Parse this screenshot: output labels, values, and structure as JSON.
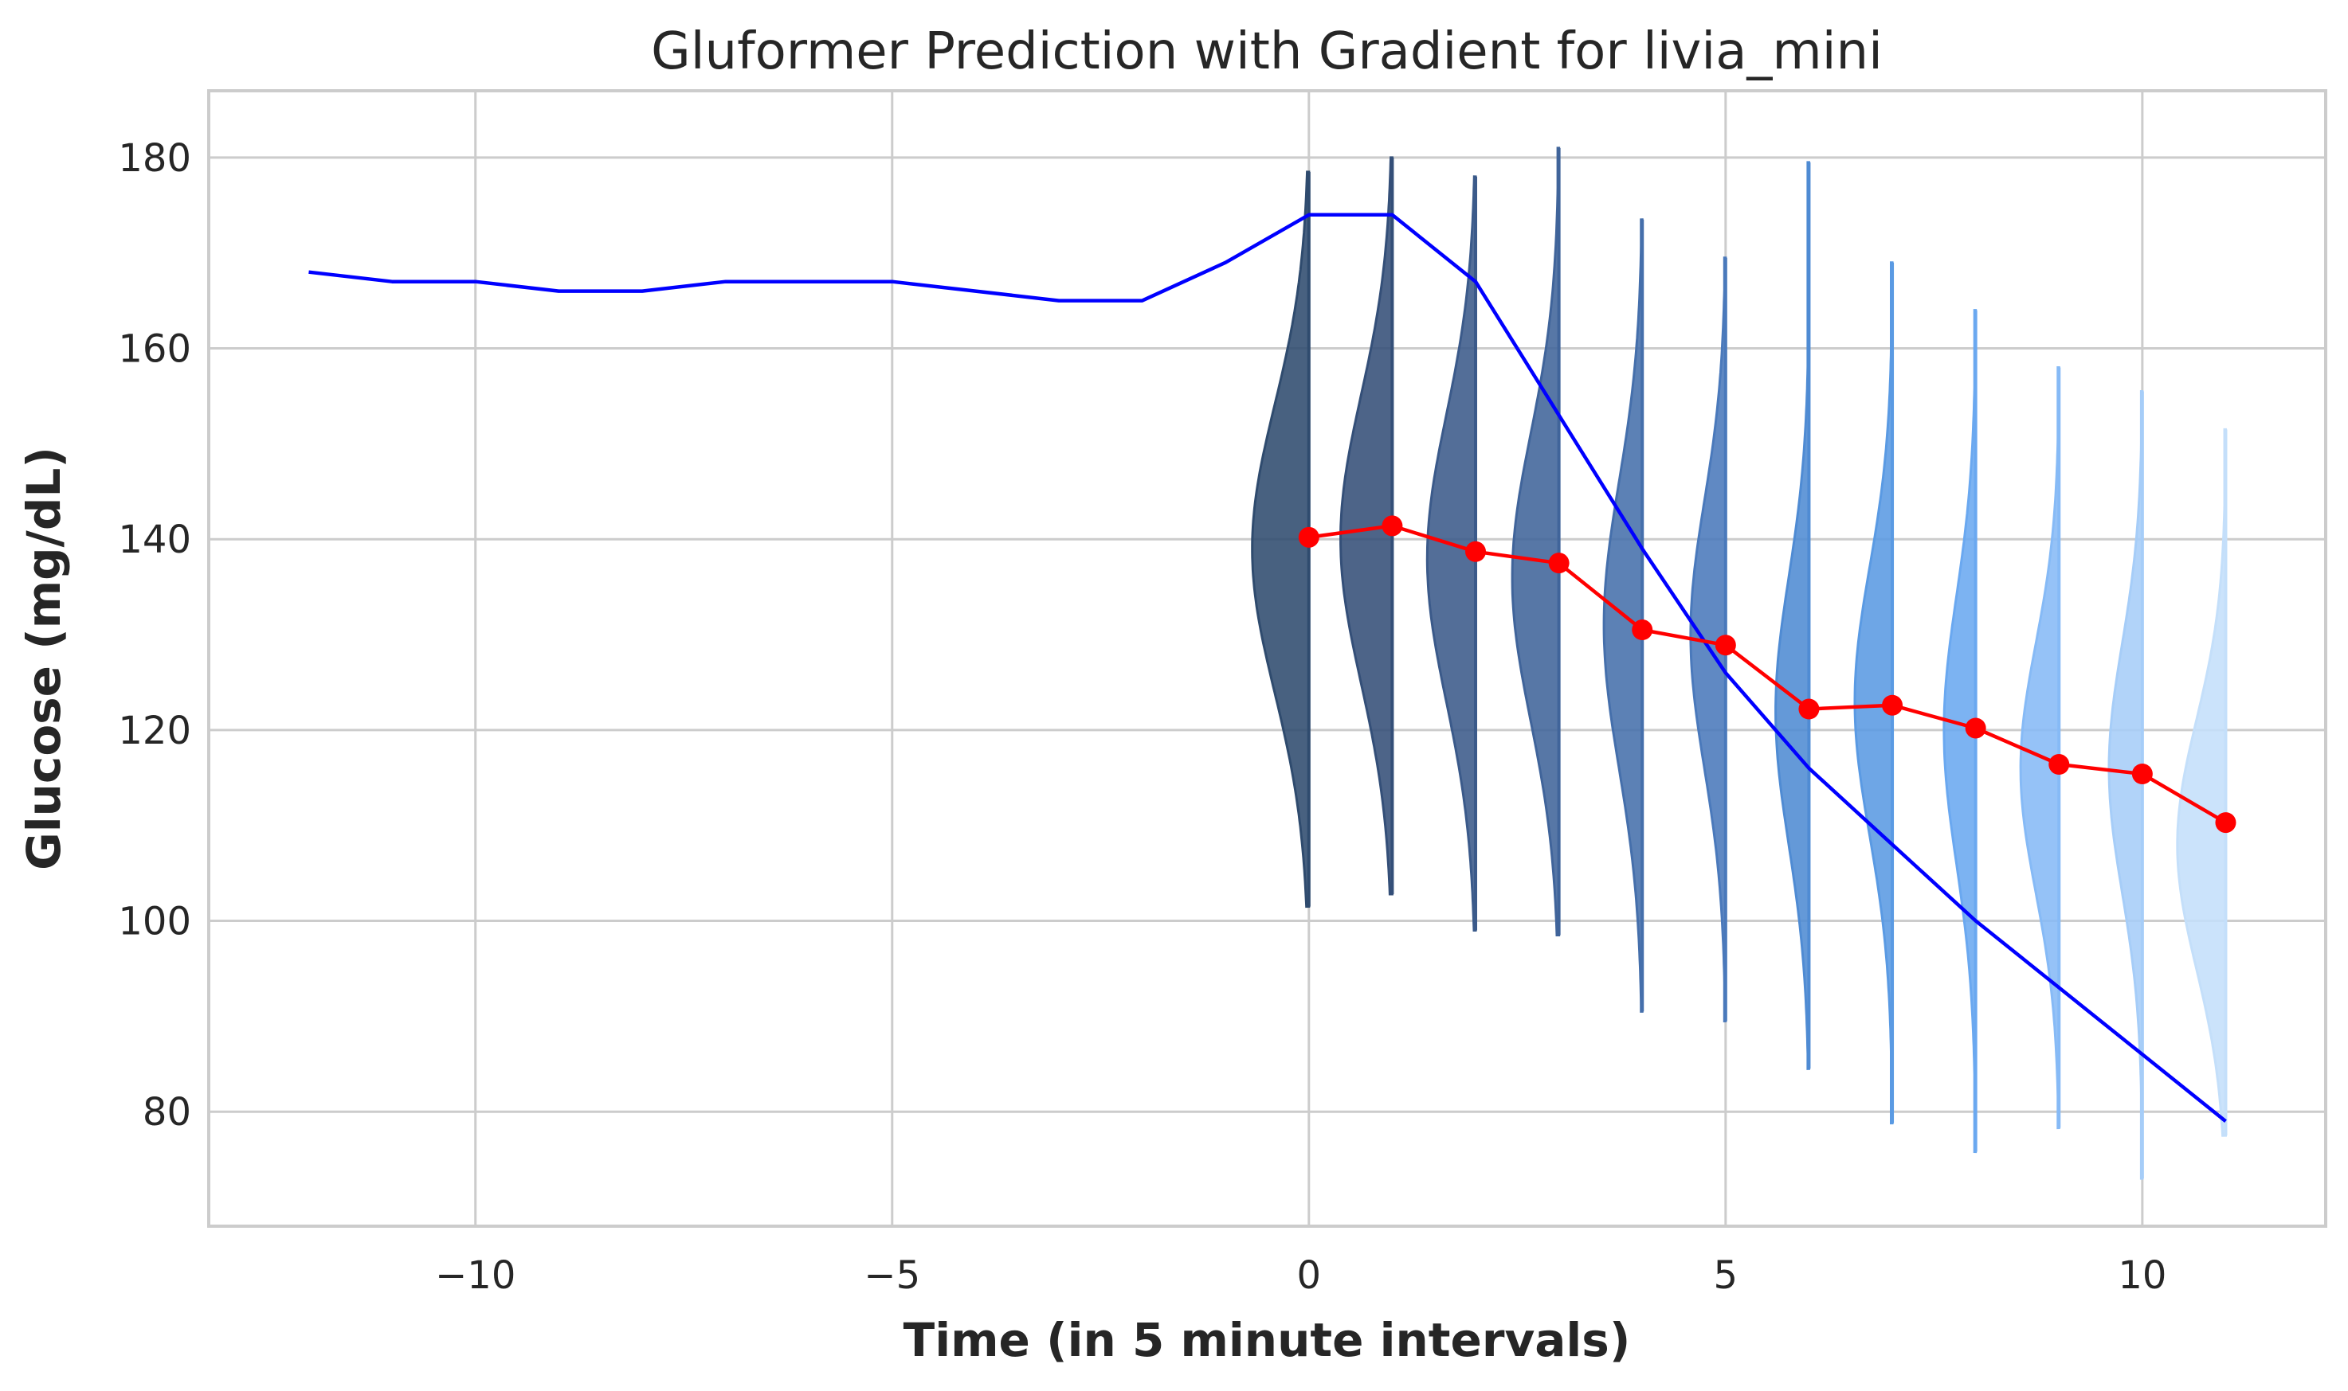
{
  "chart_data": {
    "type": "line",
    "title": "Gluformer Prediction with Gradient for livia_mini",
    "xlabel": "Time (in 5 minute intervals)",
    "ylabel": "Glucose (mg/dL)",
    "xlim": [
      -13.2,
      12.2
    ],
    "ylim": [
      68,
      187
    ],
    "x_ticks": [
      -10,
      -5,
      0,
      5,
      10
    ],
    "x_tick_labels": [
      "−10",
      "−5",
      "0",
      "5",
      "10"
    ],
    "y_ticks": [
      80,
      100,
      120,
      140,
      160,
      180
    ],
    "y_tick_labels": [
      "80",
      "100",
      "120",
      "140",
      "160",
      "180"
    ],
    "grid": true,
    "series": [
      {
        "color": "#0000ff",
        "x": [
          -12,
          -11,
          -10,
          -9,
          -8,
          -7,
          -6,
          -5,
          -4,
          -3,
          -2,
          -1,
          0,
          1,
          2,
          3,
          4,
          5,
          6,
          7,
          8,
          9,
          10,
          11
        ],
        "values": [
          168,
          167,
          167,
          166,
          166,
          167,
          167,
          167,
          166,
          165,
          165,
          169,
          174,
          174,
          167,
          153,
          139,
          126,
          116,
          108,
          100,
          93,
          86,
          79
        ]
      },
      {
        "color": "#ff0000",
        "marker": "circle",
        "x": [
          0,
          1,
          2,
          3,
          4,
          5,
          6,
          7,
          8,
          9,
          10,
          11
        ],
        "values": [
          140.2,
          141.4,
          138.7,
          137.5,
          130.5,
          128.9,
          122.2,
          122.6,
          120.2,
          116.4,
          115.4,
          110.3
        ]
      }
    ],
    "distributions": [
      {
        "x": 0,
        "min": 101.5,
        "max": 178.5,
        "mode": 139,
        "peak_width": 0.68,
        "spread": 15,
        "color": "#2f4b6e"
      },
      {
        "x": 1,
        "min": 102.8,
        "max": 180.0,
        "mode": 140,
        "peak_width": 0.62,
        "spread": 15,
        "color": "#344f78"
      },
      {
        "x": 2,
        "min": 99.0,
        "max": 178.0,
        "mode": 138,
        "peak_width": 0.58,
        "spread": 15,
        "color": "#3b5a8a"
      },
      {
        "x": 3,
        "min": 98.5,
        "max": 181.0,
        "mode": 136,
        "peak_width": 0.56,
        "spread": 15,
        "color": "#40649a"
      },
      {
        "x": 4,
        "min": 90.5,
        "max": 173.5,
        "mode": 131,
        "peak_width": 0.46,
        "spread": 15,
        "color": "#456fab"
      },
      {
        "x": 5,
        "min": 89.5,
        "max": 169.5,
        "mode": 130,
        "peak_width": 0.42,
        "spread": 14,
        "color": "#4a79bb"
      },
      {
        "x": 6,
        "min": 84.5,
        "max": 179.5,
        "mode": 122,
        "peak_width": 0.4,
        "spread": 14,
        "color": "#4f8bd3"
      },
      {
        "x": 7,
        "min": 78.8,
        "max": 169.0,
        "mode": 123,
        "peak_width": 0.45,
        "spread": 14,
        "color": "#5a9ae3"
      },
      {
        "x": 8,
        "min": 75.8,
        "max": 164.0,
        "mode": 120,
        "peak_width": 0.38,
        "spread": 14,
        "color": "#6aa8f0"
      },
      {
        "x": 9,
        "min": 78.3,
        "max": 158.0,
        "mode": 116,
        "peak_width": 0.46,
        "spread": 13,
        "color": "#86baf6"
      },
      {
        "x": 10,
        "min": 73.0,
        "max": 155.5,
        "mode": 116,
        "peak_width": 0.4,
        "spread": 13,
        "color": "#a6cdf8"
      },
      {
        "x": 11,
        "min": 77.5,
        "max": 151.5,
        "mode": 108,
        "peak_width": 0.58,
        "spread": 13,
        "color": "#c4dffa"
      }
    ]
  }
}
